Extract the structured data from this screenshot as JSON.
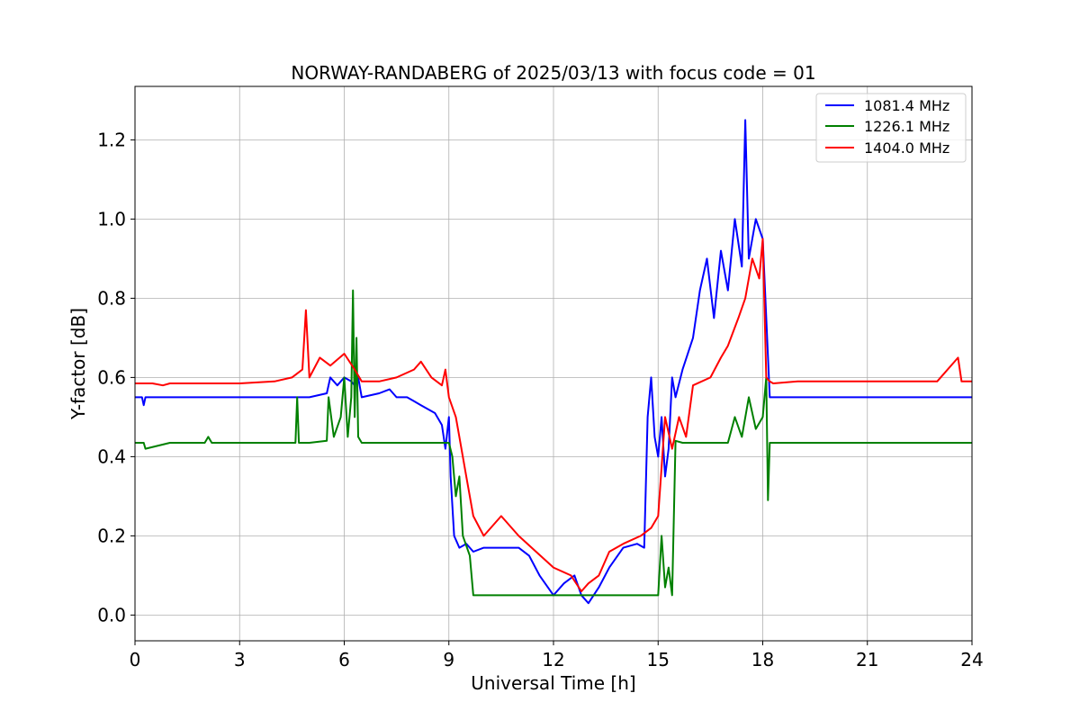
{
  "chart_data": {
    "type": "line",
    "title": "NORWAY-RANDABERG of 2025/03/13 with focus code = 01",
    "xlabel": "Universal Time [h]",
    "ylabel": "Y-factor [dB]",
    "xlim": [
      0,
      24
    ],
    "ylim": [
      -0.065,
      1.335
    ],
    "xticks": [
      0,
      3,
      6,
      9,
      12,
      15,
      18,
      21,
      24
    ],
    "yticks": [
      0.0,
      0.2,
      0.4,
      0.6,
      0.8,
      1.0,
      1.2
    ],
    "xtick_labels": [
      "0",
      "3",
      "6",
      "9",
      "12",
      "15",
      "18",
      "21",
      "24"
    ],
    "ytick_labels": [
      "0.0",
      "0.2",
      "0.4",
      "0.6",
      "0.8",
      "1.0",
      "1.2"
    ],
    "grid": true,
    "legend_position": "top-right",
    "series": [
      {
        "name": "1081.4 MHz",
        "color": "#0000ff",
        "x": [
          0,
          0.2,
          0.25,
          0.3,
          1,
          2,
          3,
          4,
          5,
          5.5,
          5.6,
          5.8,
          6.0,
          6.2,
          6.3,
          6.4,
          6.5,
          7.0,
          7.3,
          7.5,
          7.8,
          8.0,
          8.2,
          8.4,
          8.6,
          8.8,
          8.9,
          9.0,
          9.05,
          9.15,
          9.3,
          9.5,
          9.7,
          10.0,
          10.5,
          11.0,
          11.3,
          11.6,
          12.0,
          12.3,
          12.6,
          12.8,
          13.0,
          13.3,
          13.6,
          14.0,
          14.4,
          14.6,
          14.7,
          14.8,
          14.9,
          15.0,
          15.1,
          15.2,
          15.3,
          15.4,
          15.5,
          15.7,
          16.0,
          16.2,
          16.4,
          16.6,
          16.8,
          17.0,
          17.2,
          17.4,
          17.5,
          17.6,
          17.8,
          18.0,
          18.1,
          18.2,
          18.3,
          19,
          20,
          21,
          22,
          23,
          23.5,
          24
        ],
        "values": [
          0.55,
          0.55,
          0.53,
          0.55,
          0.55,
          0.55,
          0.55,
          0.55,
          0.55,
          0.56,
          0.6,
          0.58,
          0.6,
          0.59,
          0.58,
          0.6,
          0.55,
          0.56,
          0.57,
          0.55,
          0.55,
          0.54,
          0.53,
          0.52,
          0.51,
          0.48,
          0.42,
          0.5,
          0.35,
          0.2,
          0.17,
          0.18,
          0.16,
          0.17,
          0.17,
          0.17,
          0.15,
          0.1,
          0.05,
          0.08,
          0.1,
          0.05,
          0.03,
          0.07,
          0.12,
          0.17,
          0.18,
          0.17,
          0.5,
          0.6,
          0.45,
          0.4,
          0.5,
          0.35,
          0.42,
          0.6,
          0.55,
          0.62,
          0.7,
          0.82,
          0.9,
          0.75,
          0.92,
          0.82,
          1.0,
          0.88,
          1.25,
          0.9,
          1.0,
          0.95,
          0.75,
          0.55,
          0.55,
          0.55,
          0.55,
          0.55,
          0.55,
          0.55,
          0.55,
          0.55
        ]
      },
      {
        "name": "1226.1 MHz",
        "color": "#008000",
        "x": [
          0,
          0.25,
          0.3,
          1,
          2,
          2.1,
          2.2,
          3,
          4,
          4.6,
          4.65,
          4.7,
          5.0,
          5.5,
          5.55,
          5.7,
          5.9,
          6.0,
          6.1,
          6.2,
          6.25,
          6.3,
          6.35,
          6.4,
          6.5,
          7.0,
          8.0,
          8.5,
          9.0,
          9.1,
          9.2,
          9.3,
          9.4,
          9.6,
          9.7,
          10.0,
          10.5,
          11.0,
          11.5,
          12.0,
          12.5,
          13.0,
          13.5,
          14.0,
          14.5,
          15.0,
          15.1,
          15.2,
          15.3,
          15.4,
          15.5,
          15.7,
          16.0,
          16.5,
          17.0,
          17.2,
          17.4,
          17.6,
          17.8,
          18.0,
          18.1,
          18.15,
          18.2,
          18.3,
          19,
          20,
          21,
          22,
          23,
          24
        ],
        "values": [
          0.435,
          0.435,
          0.42,
          0.435,
          0.435,
          0.45,
          0.435,
          0.435,
          0.435,
          0.435,
          0.55,
          0.435,
          0.435,
          0.44,
          0.55,
          0.45,
          0.5,
          0.6,
          0.45,
          0.55,
          0.82,
          0.5,
          0.7,
          0.45,
          0.435,
          0.435,
          0.435,
          0.435,
          0.435,
          0.4,
          0.3,
          0.35,
          0.2,
          0.15,
          0.05,
          0.05,
          0.05,
          0.05,
          0.05,
          0.05,
          0.05,
          0.05,
          0.05,
          0.05,
          0.05,
          0.05,
          0.2,
          0.07,
          0.12,
          0.05,
          0.44,
          0.435,
          0.435,
          0.435,
          0.435,
          0.5,
          0.45,
          0.55,
          0.47,
          0.5,
          0.6,
          0.29,
          0.435,
          0.435,
          0.435,
          0.435,
          0.435,
          0.435,
          0.435,
          0.435
        ]
      },
      {
        "name": "1404.0 MHz",
        "color": "#ff0000",
        "x": [
          0,
          0.5,
          0.8,
          1,
          2,
          3,
          4,
          4.5,
          4.8,
          4.9,
          5.0,
          5.3,
          5.6,
          6.0,
          6.3,
          6.5,
          6.8,
          7.0,
          7.5,
          8.0,
          8.2,
          8.5,
          8.8,
          8.9,
          9.0,
          9.2,
          9.3,
          9.5,
          9.7,
          10.0,
          10.5,
          11.0,
          11.5,
          12.0,
          12.5,
          12.8,
          13.0,
          13.3,
          13.6,
          14.0,
          14.5,
          14.8,
          15.0,
          15.2,
          15.4,
          15.6,
          15.8,
          16.0,
          16.5,
          16.8,
          17.0,
          17.3,
          17.5,
          17.7,
          17.9,
          18.0,
          18.1,
          18.2,
          18.3,
          19,
          20,
          21,
          22,
          23,
          23.6,
          23.7,
          24
        ],
        "values": [
          0.585,
          0.585,
          0.58,
          0.585,
          0.585,
          0.585,
          0.59,
          0.6,
          0.62,
          0.77,
          0.6,
          0.65,
          0.63,
          0.66,
          0.62,
          0.59,
          0.59,
          0.59,
          0.6,
          0.62,
          0.64,
          0.6,
          0.58,
          0.62,
          0.55,
          0.5,
          0.45,
          0.35,
          0.25,
          0.2,
          0.25,
          0.2,
          0.16,
          0.12,
          0.1,
          0.06,
          0.08,
          0.1,
          0.16,
          0.18,
          0.2,
          0.22,
          0.25,
          0.5,
          0.42,
          0.5,
          0.45,
          0.58,
          0.6,
          0.65,
          0.68,
          0.75,
          0.8,
          0.9,
          0.85,
          0.95,
          0.6,
          0.59,
          0.585,
          0.59,
          0.59,
          0.59,
          0.59,
          0.59,
          0.65,
          0.59,
          0.59
        ]
      }
    ]
  }
}
